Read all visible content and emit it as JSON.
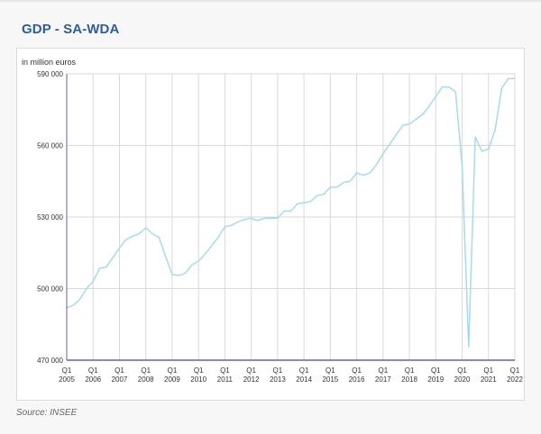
{
  "title": "GDP - SA-WDA",
  "source": "Source: INSEE",
  "colors": {
    "line": "#a8dbe8",
    "axis": "#6a5fb0",
    "grid": "#d9d9d9",
    "title": "#2f5d9a"
  },
  "chart_data": {
    "type": "line",
    "title": "GDP - SA-WDA",
    "ylabel": "in million euros",
    "xlabel": "",
    "ylim": [
      470000,
      590000
    ],
    "yticks": [
      470000,
      500000,
      530000,
      560000,
      590000
    ],
    "ytick_labels": [
      "470 000",
      "500 000",
      "530 000",
      "560 000",
      "590 000"
    ],
    "xtick_labels": [
      [
        "Q1",
        "2005"
      ],
      [
        "Q1",
        "2006"
      ],
      [
        "Q1",
        "2007"
      ],
      [
        "Q1",
        "2008"
      ],
      [
        "Q1",
        "2009"
      ],
      [
        "Q1",
        "2010"
      ],
      [
        "Q1",
        "2011"
      ],
      [
        "Q1",
        "2012"
      ],
      [
        "Q1",
        "2013"
      ],
      [
        "Q1",
        "2014"
      ],
      [
        "Q1",
        "2015"
      ],
      [
        "Q1",
        "2016"
      ],
      [
        "Q1",
        "2017"
      ],
      [
        "Q1",
        "2018"
      ],
      [
        "Q1",
        "2019"
      ],
      [
        "Q1",
        "2020"
      ],
      [
        "Q1",
        "2021"
      ],
      [
        "Q1",
        "2022"
      ]
    ],
    "grid": true,
    "legend": "none",
    "x": [
      "2005Q1",
      "2005Q2",
      "2005Q3",
      "2005Q4",
      "2006Q1",
      "2006Q2",
      "2006Q3",
      "2006Q4",
      "2007Q1",
      "2007Q2",
      "2007Q3",
      "2007Q4",
      "2008Q1",
      "2008Q2",
      "2008Q3",
      "2008Q4",
      "2009Q1",
      "2009Q2",
      "2009Q3",
      "2009Q4",
      "2010Q1",
      "2010Q2",
      "2010Q3",
      "2010Q4",
      "2011Q1",
      "2011Q2",
      "2011Q3",
      "2011Q4",
      "2012Q1",
      "2012Q2",
      "2012Q3",
      "2012Q4",
      "2013Q1",
      "2013Q2",
      "2013Q3",
      "2013Q4",
      "2014Q1",
      "2014Q2",
      "2014Q3",
      "2014Q4",
      "2015Q1",
      "2015Q2",
      "2015Q3",
      "2015Q4",
      "2016Q1",
      "2016Q2",
      "2016Q3",
      "2016Q4",
      "2017Q1",
      "2017Q2",
      "2017Q3",
      "2017Q4",
      "2018Q1",
      "2018Q2",
      "2018Q3",
      "2018Q4",
      "2019Q1",
      "2019Q2",
      "2019Q3",
      "2019Q4",
      "2020Q1",
      "2020Q2",
      "2020Q3",
      "2020Q4",
      "2021Q1",
      "2021Q2",
      "2021Q3",
      "2021Q4",
      "2022Q1"
    ],
    "series": [
      {
        "name": "GDP",
        "values": [
          492000,
          493000,
          495500,
          500000,
          503000,
          508500,
          509000,
          513000,
          517000,
          520500,
          522000,
          523000,
          525500,
          523000,
          521500,
          513500,
          506000,
          505500,
          506500,
          510000,
          511500,
          514500,
          518000,
          521500,
          526000,
          526500,
          528000,
          529000,
          529500,
          528500,
          529500,
          529500,
          529500,
          532500,
          532500,
          535500,
          536000,
          536500,
          539000,
          539500,
          542500,
          542500,
          544500,
          545000,
          548500,
          547500,
          548500,
          552000,
          556500,
          560500,
          564500,
          568500,
          569000,
          571000,
          573000,
          576500,
          580500,
          584500,
          584500,
          582500,
          551500,
          475500,
          563500,
          557500,
          558500,
          566500,
          584000,
          588000,
          588000
        ]
      }
    ]
  }
}
